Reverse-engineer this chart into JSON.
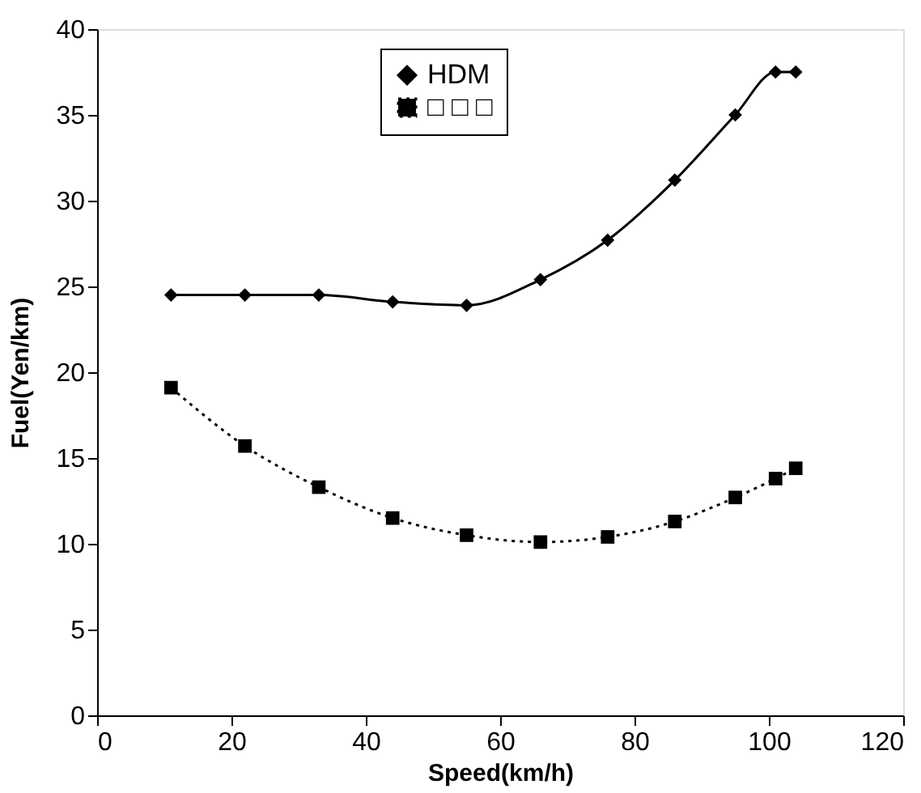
{
  "chart_data": {
    "type": "line",
    "xlabel": "Speed(km/h)",
    "ylabel": "Fuel(Yen/km)",
    "x": [
      11,
      22,
      33,
      44,
      55,
      66,
      76,
      86,
      95,
      101,
      104
    ],
    "series": [
      {
        "name": "HDM",
        "color": "#000000",
        "marker": "diamond",
        "line_style": "solid",
        "values": [
          24.5,
          24.5,
          24.5,
          24.1,
          23.9,
          25.4,
          27.7,
          31.2,
          35,
          37.5,
          37.5
        ]
      },
      {
        "name": "□ □ □",
        "color": "#000000",
        "marker": "square",
        "line_style": "dotted",
        "values": [
          19.1,
          15.7,
          13.3,
          11.5,
          10.5,
          10.1,
          10.4,
          11.3,
          12.7,
          13.8,
          14.4
        ]
      }
    ],
    "xlim": [
      0,
      120
    ],
    "xticks": [
      0,
      20,
      40,
      60,
      80,
      100,
      120
    ],
    "ylim": [
      0,
      40
    ],
    "yticks": [
      0,
      5,
      10,
      15,
      20,
      25,
      30,
      35,
      40
    ],
    "grid": false,
    "legend": "top"
  }
}
